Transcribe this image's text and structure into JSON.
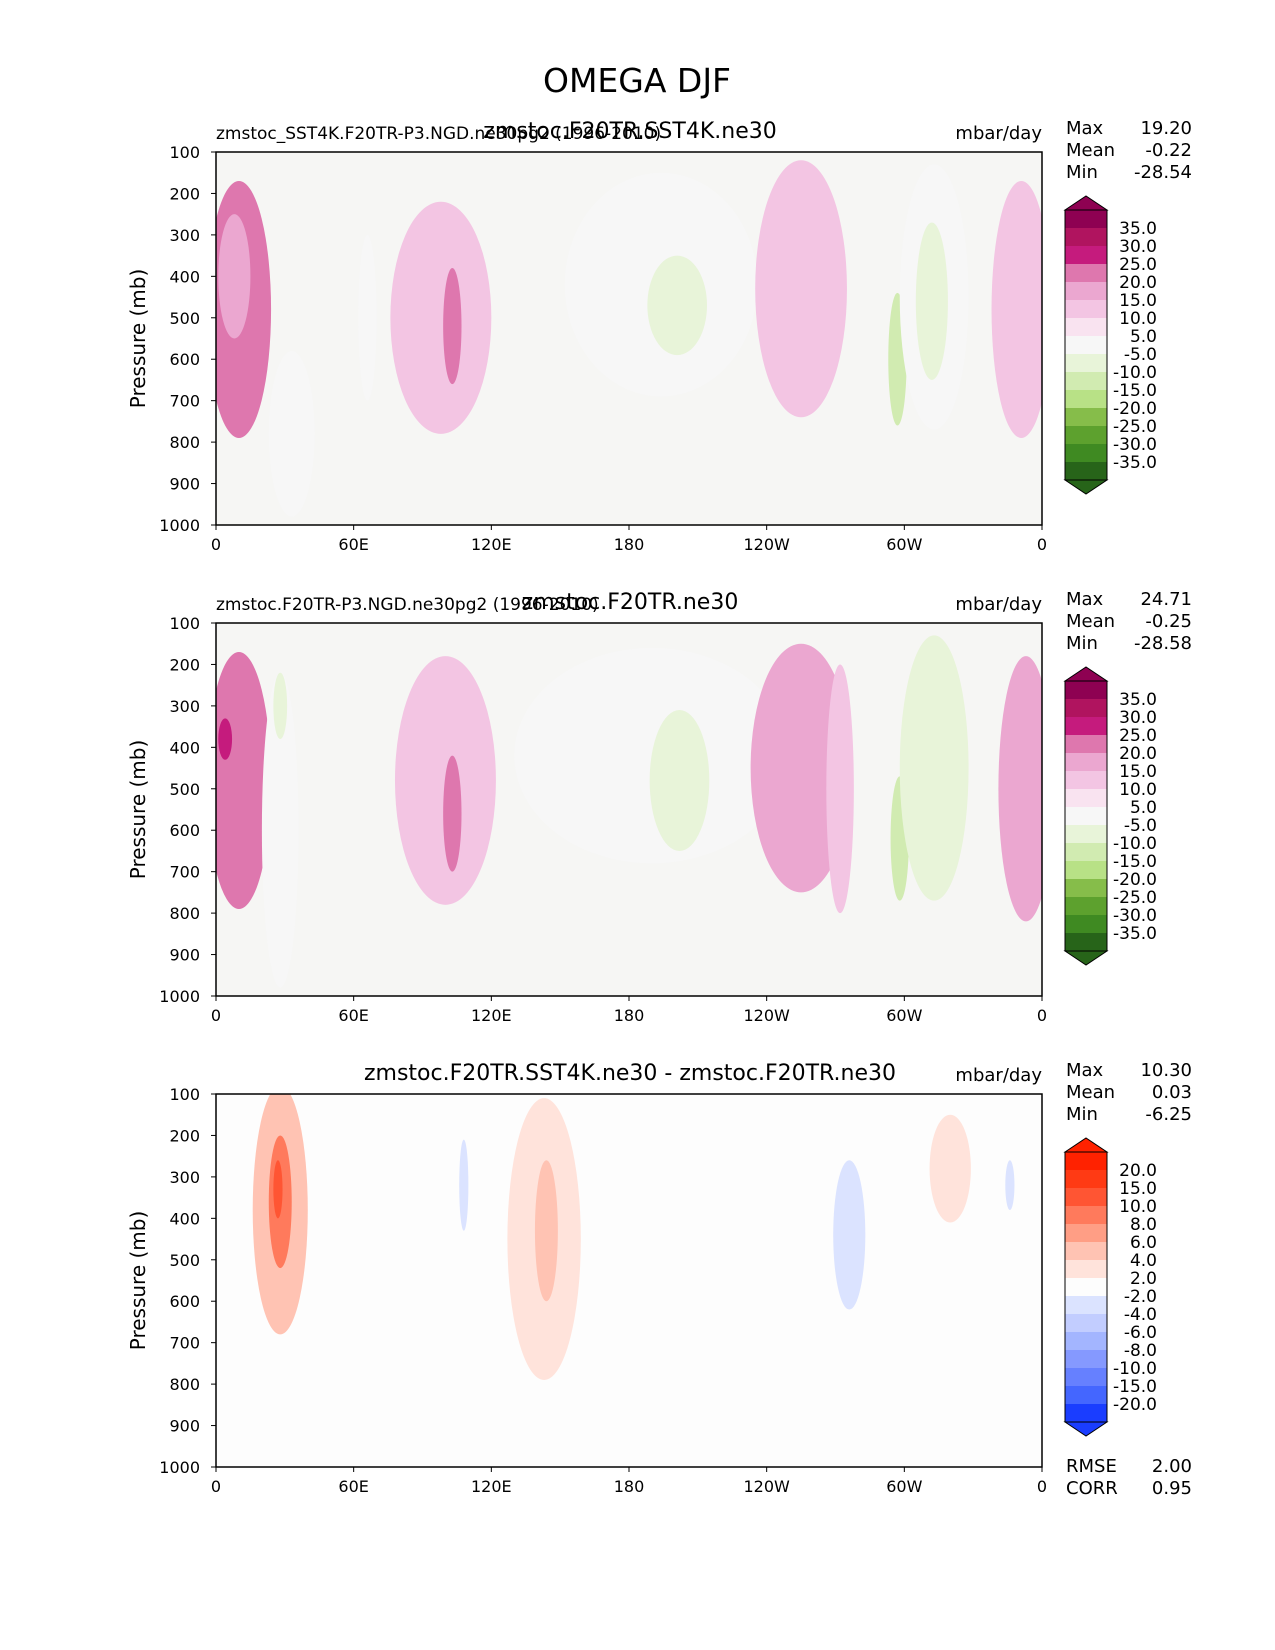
{
  "figure_title": "OMEGA DJF",
  "chart_data": [
    {
      "type": "heatmap",
      "id": "test",
      "title": "zmstoc.F20TR.SST4K.ne30",
      "left_label": "zmstoc_SST4K.F20TR-P3.NGD.ne30pg2 (1996-2010)",
      "units": "mbar/day",
      "ylabel": "Pressure (mb)",
      "xlabel": "",
      "x_ticks": [
        "0",
        "60E",
        "120E",
        "180",
        "120W",
        "60W",
        "0"
      ],
      "y_ticks": [
        "100",
        "200",
        "300",
        "400",
        "500",
        "600",
        "700",
        "800",
        "900",
        "1000"
      ],
      "xlim": [
        0,
        360
      ],
      "ylim": [
        1000,
        100
      ],
      "stats": [
        {
          "label": "Max",
          "value": "19.20"
        },
        {
          "label": "Mean",
          "value": "-0.22"
        },
        {
          "label": "Min",
          "value": "-28.54"
        }
      ],
      "colorbar_labels": [
        "35.0",
        "30.0",
        "25.0",
        "20.0",
        "15.0",
        "10.0",
        "5.0",
        "-5.0",
        "-10.0",
        "-15.0",
        "-20.0",
        "-25.0",
        "-30.0",
        "-35.0"
      ],
      "colorbar_colors": [
        "#8e0152",
        "#b0145f",
        "#c51b7d",
        "#de77ae",
        "#eba7d0",
        "#f3c5e3",
        "#f9e3f0",
        "#f7f7f7",
        "#e8f4d9",
        "#d1ebb1",
        "#b8e186",
        "#86bd4a",
        "#5da12e",
        "#3f8a22",
        "#276419"
      ],
      "background_color": "#f6f6f4",
      "features": [
        {
          "lon": 10,
          "p": 480,
          "wlon": 14,
          "wp": 310,
          "level": 20
        },
        {
          "lon": 8,
          "p": 400,
          "wlon": 7,
          "wp": 150,
          "level": 15
        },
        {
          "lon": 33,
          "p": 780,
          "wlon": 10,
          "wp": 200,
          "level": -5
        },
        {
          "lon": 66,
          "p": 500,
          "wlon": 4,
          "wp": 200,
          "level": -5
        },
        {
          "lon": 98,
          "p": 500,
          "wlon": 22,
          "wp": 280,
          "level": 10
        },
        {
          "lon": 103,
          "p": 520,
          "wlon": 4,
          "wp": 140,
          "level": 20
        },
        {
          "lon": 194,
          "p": 420,
          "wlon": 42,
          "wp": 270,
          "level": -5
        },
        {
          "lon": 201,
          "p": 470,
          "wlon": 13,
          "wp": 120,
          "level": -10
        },
        {
          "lon": 255,
          "p": 430,
          "wlon": 20,
          "wp": 310,
          "level": 10
        },
        {
          "lon": 297,
          "p": 600,
          "wlon": 4,
          "wp": 160,
          "level": -15
        },
        {
          "lon": 313,
          "p": 450,
          "wlon": 15,
          "wp": 320,
          "level": -5
        },
        {
          "lon": 312,
          "p": 460,
          "wlon": 7,
          "wp": 190,
          "level": -10
        },
        {
          "lon": 351,
          "p": 480,
          "wlon": 13,
          "wp": 310,
          "level": 10
        }
      ]
    },
    {
      "type": "heatmap",
      "id": "reference",
      "title": "zmstoc.F20TR.ne30",
      "left_label": "zmstoc.F20TR-P3.NGD.ne30pg2 (1996-2010)",
      "units": "mbar/day",
      "ylabel": "Pressure (mb)",
      "xlabel": "",
      "x_ticks": [
        "0",
        "60E",
        "120E",
        "180",
        "120W",
        "60W",
        "0"
      ],
      "y_ticks": [
        "100",
        "200",
        "300",
        "400",
        "500",
        "600",
        "700",
        "800",
        "900",
        "1000"
      ],
      "xlim": [
        0,
        360
      ],
      "ylim": [
        1000,
        100
      ],
      "stats": [
        {
          "label": "Max",
          "value": "24.71"
        },
        {
          "label": "Mean",
          "value": "-0.25"
        },
        {
          "label": "Min",
          "value": "-28.58"
        }
      ],
      "colorbar_labels": [
        "35.0",
        "30.0",
        "25.0",
        "20.0",
        "15.0",
        "10.0",
        "5.0",
        "-5.0",
        "-10.0",
        "-15.0",
        "-20.0",
        "-25.0",
        "-30.0",
        "-35.0"
      ],
      "colorbar_colors": [
        "#8e0152",
        "#b0145f",
        "#c51b7d",
        "#de77ae",
        "#eba7d0",
        "#f3c5e3",
        "#f9e3f0",
        "#f7f7f7",
        "#e8f4d9",
        "#d1ebb1",
        "#b8e186",
        "#86bd4a",
        "#5da12e",
        "#3f8a22",
        "#276419"
      ],
      "background_color": "#f6f6f4",
      "features": [
        {
          "lon": 10,
          "p": 480,
          "wlon": 14,
          "wp": 310,
          "level": 20
        },
        {
          "lon": 4,
          "p": 380,
          "wlon": 3,
          "wp": 50,
          "level": 25
        },
        {
          "lon": 28,
          "p": 600,
          "wlon": 8,
          "wp": 380,
          "level": -5
        },
        {
          "lon": 28,
          "p": 300,
          "wlon": 3,
          "wp": 80,
          "level": -10
        },
        {
          "lon": 100,
          "p": 480,
          "wlon": 22,
          "wp": 300,
          "level": 10
        },
        {
          "lon": 103,
          "p": 560,
          "wlon": 4,
          "wp": 140,
          "level": 20
        },
        {
          "lon": 190,
          "p": 420,
          "wlon": 60,
          "wp": 260,
          "level": -5
        },
        {
          "lon": 202,
          "p": 480,
          "wlon": 13,
          "wp": 170,
          "level": -10
        },
        {
          "lon": 255,
          "p": 450,
          "wlon": 22,
          "wp": 300,
          "level": 15
        },
        {
          "lon": 272,
          "p": 500,
          "wlon": 6,
          "wp": 300,
          "level": 10
        },
        {
          "lon": 298,
          "p": 620,
          "wlon": 4,
          "wp": 150,
          "level": -15
        },
        {
          "lon": 313,
          "p": 450,
          "wlon": 15,
          "wp": 320,
          "level": -10
        },
        {
          "lon": 353,
          "p": 500,
          "wlon": 12,
          "wp": 320,
          "level": 15
        }
      ]
    },
    {
      "type": "heatmap",
      "id": "difference",
      "title": "zmstoc.F20TR.SST4K.ne30 - zmstoc.F20TR.ne30",
      "left_label": "",
      "units": "mbar/day",
      "ylabel": "Pressure (mb)",
      "xlabel": "",
      "x_ticks": [
        "0",
        "60E",
        "120E",
        "180",
        "120W",
        "60W",
        "0"
      ],
      "y_ticks": [
        "100",
        "200",
        "300",
        "400",
        "500",
        "600",
        "700",
        "800",
        "900",
        "1000"
      ],
      "xlim": [
        0,
        360
      ],
      "ylim": [
        1000,
        100
      ],
      "stats": [
        {
          "label": "Max",
          "value": "10.30"
        },
        {
          "label": "Mean",
          "value": "0.03"
        },
        {
          "label": "Min",
          "value": "-6.25"
        }
      ],
      "colorbar_labels": [
        "20.0",
        "15.0",
        "10.0",
        "8.0",
        "6.0",
        "4.0",
        "2.0",
        "-2.0",
        "-4.0",
        "-6.0",
        "-8.0",
        "-10.0",
        "-15.0",
        "-20.0"
      ],
      "colorbar_colors": [
        "#ff2200",
        "#ff3a14",
        "#ff5533",
        "#ff7a5c",
        "#ff9e85",
        "#ffc3b3",
        "#ffe3db",
        "#fdfdfd",
        "#dbe3ff",
        "#c2cdff",
        "#a3b5ff",
        "#8599ff",
        "#6680ff",
        "#4466ff",
        "#1a3dff"
      ],
      "background_color": "#fdfdfd",
      "features": [
        {
          "lon": 28,
          "p": 380,
          "wlon": 12,
          "wp": 300,
          "level": 4
        },
        {
          "lon": 28,
          "p": 360,
          "wlon": 5,
          "wp": 160,
          "level": 8
        },
        {
          "lon": 27,
          "p": 330,
          "wlon": 2,
          "wp": 70,
          "level": 10
        },
        {
          "lon": 106,
          "p": 370,
          "wlon": 5,
          "wp": 200,
          "level": -2
        },
        {
          "lon": 108,
          "p": 320,
          "wlon": 2,
          "wp": 110,
          "level": -4
        },
        {
          "lon": 143,
          "p": 450,
          "wlon": 16,
          "wp": 340,
          "level": 2
        },
        {
          "lon": 144,
          "p": 430,
          "wlon": 5,
          "wp": 170,
          "level": 4
        },
        {
          "lon": 225,
          "p": 500,
          "wlon": 16,
          "wp": 380,
          "level": -2
        },
        {
          "lon": 282,
          "p": 430,
          "wlon": 22,
          "wp": 290,
          "level": -2
        },
        {
          "lon": 276,
          "p": 440,
          "wlon": 7,
          "wp": 180,
          "level": -4
        },
        {
          "lon": 320,
          "p": 280,
          "wlon": 9,
          "wp": 130,
          "level": 2
        },
        {
          "lon": 347,
          "p": 330,
          "wlon": 10,
          "wp": 190,
          "level": -2
        },
        {
          "lon": 346,
          "p": 320,
          "wlon": 2,
          "wp": 60,
          "level": -4
        }
      ],
      "summary_stats": [
        {
          "label": "RMSE",
          "value": "2.00"
        },
        {
          "label": "CORR",
          "value": "0.95"
        }
      ]
    }
  ]
}
